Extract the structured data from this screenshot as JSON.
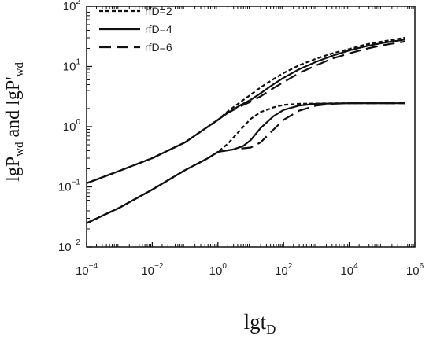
{
  "chart_data": {
    "type": "line",
    "xscale": "log",
    "yscale": "log",
    "xlim": [
      0.0001,
      1000000
    ],
    "ylim": [
      0.01,
      100
    ],
    "x_ticks": [
      {
        "base": "10",
        "exp": "−4",
        "value": 0.0001
      },
      {
        "base": "10",
        "exp": "−2",
        "value": 0.01
      },
      {
        "base": "10",
        "exp": "0",
        "value": 1
      },
      {
        "base": "10",
        "exp": "2",
        "value": 100
      },
      {
        "base": "10",
        "exp": "4",
        "value": 10000
      },
      {
        "base": "10",
        "exp": "6",
        "value": 1000000
      }
    ],
    "y_ticks": [
      {
        "base": "10",
        "exp": "−2",
        "value": 0.01
      },
      {
        "base": "10",
        "exp": "−1",
        "value": 0.1
      },
      {
        "base": "10",
        "exp": "0",
        "value": 1
      },
      {
        "base": "10",
        "exp": "1",
        "value": 10
      },
      {
        "base": "10",
        "exp": "2",
        "value": 100
      }
    ],
    "xlabel": {
      "main": "lgt",
      "sub": "D"
    },
    "ylabel": {
      "p1": "lgP",
      "s1": "wd",
      "p2": " and lgP'",
      "s2": "wd"
    },
    "legend_position": "top-left",
    "series": [
      {
        "name": "rfD=2",
        "style": "dashed",
        "pressure": [
          [
            0.0001,
            0.115
          ],
          [
            0.001,
            0.185
          ],
          [
            0.01,
            0.3
          ],
          [
            0.1,
            0.55
          ],
          [
            1,
            1.3
          ],
          [
            2,
            1.8
          ],
          [
            5,
            2.6
          ],
          [
            10,
            3.4
          ],
          [
            20,
            4.5
          ],
          [
            50,
            6.2
          ],
          [
            100,
            7.8
          ],
          [
            300,
            10.5
          ],
          [
            1000,
            13.5
          ],
          [
            3000,
            16.5
          ],
          [
            10000,
            19.5
          ],
          [
            30000,
            23
          ],
          [
            100000,
            26
          ],
          [
            500000,
            30
          ]
        ],
        "derivative": [
          [
            0.0001,
            0.025
          ],
          [
            0.001,
            0.045
          ],
          [
            0.01,
            0.09
          ],
          [
            0.1,
            0.19
          ],
          [
            0.5,
            0.3
          ],
          [
            1,
            0.38
          ],
          [
            2,
            0.52
          ],
          [
            5,
            0.9
          ],
          [
            10,
            1.35
          ],
          [
            20,
            1.75
          ],
          [
            50,
            2.1
          ],
          [
            100,
            2.3
          ],
          [
            300,
            2.4
          ],
          [
            1000,
            2.42
          ],
          [
            10000,
            2.45
          ],
          [
            500000,
            2.45
          ]
        ]
      },
      {
        "name": "rfD=4",
        "style": "solid",
        "pressure": [
          [
            0.0001,
            0.115
          ],
          [
            0.001,
            0.185
          ],
          [
            0.01,
            0.3
          ],
          [
            0.1,
            0.55
          ],
          [
            1,
            1.3
          ],
          [
            2,
            1.7
          ],
          [
            5,
            2.3
          ],
          [
            10,
            2.8
          ],
          [
            20,
            3.6
          ],
          [
            50,
            5.1
          ],
          [
            100,
            6.5
          ],
          [
            300,
            9
          ],
          [
            1000,
            12
          ],
          [
            3000,
            15
          ],
          [
            10000,
            18.5
          ],
          [
            30000,
            21.5
          ],
          [
            100000,
            24.5
          ],
          [
            500000,
            28
          ]
        ],
        "derivative": [
          [
            0.0001,
            0.025
          ],
          [
            0.001,
            0.045
          ],
          [
            0.01,
            0.09
          ],
          [
            0.1,
            0.19
          ],
          [
            0.5,
            0.3
          ],
          [
            1,
            0.38
          ],
          [
            3,
            0.42
          ],
          [
            6,
            0.48
          ],
          [
            10,
            0.6
          ],
          [
            20,
            0.95
          ],
          [
            50,
            1.5
          ],
          [
            100,
            1.9
          ],
          [
            300,
            2.25
          ],
          [
            1000,
            2.4
          ],
          [
            10000,
            2.45
          ],
          [
            500000,
            2.45
          ]
        ]
      },
      {
        "name": "rfD=6",
        "style": "longdash",
        "pressure": [
          [
            0.0001,
            0.115
          ],
          [
            0.001,
            0.185
          ],
          [
            0.01,
            0.3
          ],
          [
            0.1,
            0.55
          ],
          [
            1,
            1.3
          ],
          [
            2,
            1.7
          ],
          [
            5,
            2.2
          ],
          [
            10,
            2.6
          ],
          [
            20,
            3.2
          ],
          [
            50,
            4.4
          ],
          [
            100,
            5.5
          ],
          [
            300,
            7.8
          ],
          [
            1000,
            10.5
          ],
          [
            3000,
            13.5
          ],
          [
            10000,
            16.5
          ],
          [
            30000,
            19.5
          ],
          [
            100000,
            22.5
          ],
          [
            500000,
            26
          ]
        ],
        "derivative": [
          [
            0.0001,
            0.025
          ],
          [
            0.001,
            0.045
          ],
          [
            0.01,
            0.09
          ],
          [
            0.1,
            0.19
          ],
          [
            0.5,
            0.3
          ],
          [
            1,
            0.38
          ],
          [
            3,
            0.42
          ],
          [
            10,
            0.45
          ],
          [
            20,
            0.55
          ],
          [
            50,
            0.9
          ],
          [
            100,
            1.3
          ],
          [
            300,
            1.85
          ],
          [
            1000,
            2.25
          ],
          [
            3000,
            2.4
          ],
          [
            10000,
            2.45
          ],
          [
            500000,
            2.45
          ]
        ]
      }
    ]
  }
}
